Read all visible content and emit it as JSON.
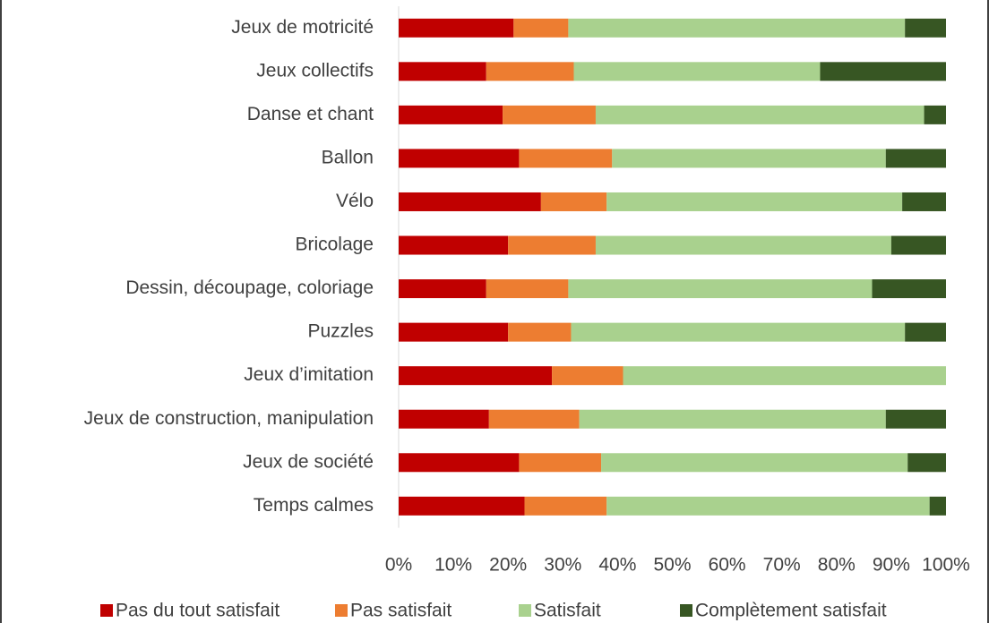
{
  "chart_data": {
    "type": "stacked_barh",
    "categories": [
      "Jeux de motricité",
      "Jeux collectifs",
      "Danse et chant",
      "Ballon",
      "Vélo",
      "Bricolage",
      "Dessin, découpage, coloriage",
      "Puzzles",
      "Jeux d’imitation",
      "Jeux de construction, manipulation",
      "Jeux de société",
      "Temps calmes"
    ],
    "series": [
      {
        "name": "Pas du tout satisfait",
        "color": "#c00000",
        "values": [
          21,
          16,
          19,
          22,
          26,
          20,
          16,
          20,
          28,
          16.5,
          22,
          23
        ]
      },
      {
        "name": "Pas satisfait",
        "color": "#ed7d31",
        "values": [
          10,
          16,
          17,
          17,
          12,
          16,
          15,
          11.5,
          13,
          16.5,
          15,
          15
        ]
      },
      {
        "name": "Satisfait",
        "color": "#a9d18e",
        "values": [
          61.5,
          45,
          60,
          50,
          54,
          54,
          55.5,
          61,
          59,
          56,
          56,
          59
        ]
      },
      {
        "name": "Complètement satisfait",
        "color": "#375623",
        "values": [
          7.5,
          23,
          4,
          11,
          8,
          10,
          13.5,
          7.5,
          0,
          11,
          7,
          3
        ]
      }
    ],
    "xlim": [
      0,
      100
    ],
    "xticks": [
      {
        "value": 0,
        "label": "0%"
      },
      {
        "value": 10,
        "label": "10%"
      },
      {
        "value": 20,
        "label": "20%"
      },
      {
        "value": 30,
        "label": "30%"
      },
      {
        "value": 40,
        "label": "40%"
      },
      {
        "value": 50,
        "label": "50%"
      },
      {
        "value": 60,
        "label": "60%"
      },
      {
        "value": 70,
        "label": "70%"
      },
      {
        "value": 80,
        "label": "80%"
      },
      {
        "value": 90,
        "label": "90%"
      },
      {
        "value": 100,
        "label": "100%"
      }
    ],
    "legend": "bottom"
  }
}
